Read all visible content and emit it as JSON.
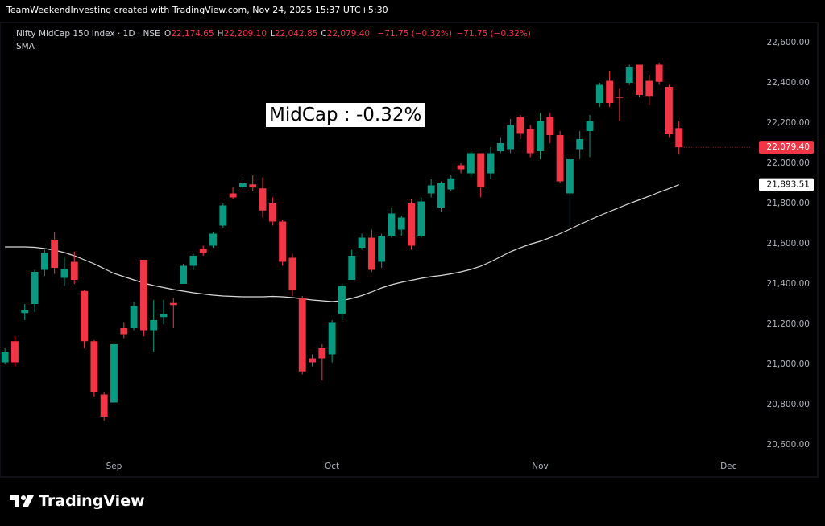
{
  "header": "TeamWeekendInvesting created with TradingView.com, Nov 24, 2025 15:37 UTC+5:30",
  "logo": "TradingView",
  "chart_data": {
    "type": "candlestick",
    "title": "Nifty MidCap 150 Index · 1D · NSE",
    "ohlc_legend": [
      {
        "key": "O",
        "text": "22,174.65"
      },
      {
        "key": "H",
        "text": "22,209.10"
      },
      {
        "key": "L",
        "text": "22,042.85"
      },
      {
        "key": "C",
        "text": "22,079.40"
      }
    ],
    "change_texts": [
      "−71.75 (−0.32%)",
      "−71.75 (−0.32%)"
    ],
    "annotation": "MidCap : -0.32%",
    "up_color": "#089981",
    "down_color": "#f23645",
    "categories": [
      null,
      null,
      null,
      null,
      null,
      null,
      null,
      null,
      null,
      null,
      null,
      "Sep",
      null,
      null,
      null,
      null,
      null,
      null,
      null,
      null,
      null,
      null,
      null,
      null,
      null,
      null,
      null,
      null,
      null,
      null,
      null,
      null,
      null,
      "Oct",
      null,
      null,
      null,
      null,
      null,
      null,
      null,
      null,
      null,
      null,
      null,
      null,
      null,
      null,
      null,
      null,
      null,
      null,
      null,
      null,
      "Nov",
      null,
      null,
      null,
      null,
      null,
      null,
      null,
      null,
      null,
      null,
      null,
      null,
      null,
      null,
      null,
      null,
      null,
      null,
      "Dec",
      null,
      null
    ],
    "open": [
      21010,
      21115,
      21255,
      21300,
      21470,
      21620,
      21430,
      21510,
      21365,
      21115,
      20850,
      20810,
      21180,
      21180,
      21520,
      21170,
      21235,
      21305,
      21400,
      21490,
      21575,
      21590,
      21690,
      21850,
      21880,
      21895,
      21875,
      21800,
      21710,
      21530,
      21330,
      21030,
      21080,
      21050,
      21250,
      21420,
      21580,
      21630,
      21510,
      21640,
      21670,
      21800,
      21640,
      21850,
      21780,
      21870,
      21990,
      21950,
      22050,
      21950,
      22060,
      22070,
      22230,
      22170,
      22060,
      22230,
      22140,
      21850,
      22070,
      22160,
      22300,
      22410,
      22330,
      22400,
      22490,
      22410,
      22490,
      22380,
      22174.65,
      null,
      null,
      null,
      null,
      null,
      null,
      null
    ],
    "high": [
      21080,
      21140,
      21300,
      21470,
      21570,
      21660,
      21530,
      21560,
      21370,
      21120,
      20860,
      21110,
      21210,
      21310,
      21520,
      21320,
      21320,
      21330,
      21500,
      21550,
      21590,
      21660,
      21800,
      21880,
      21920,
      21940,
      21930,
      21830,
      21720,
      21550,
      21340,
      21050,
      21100,
      21220,
      21400,
      21570,
      21650,
      21670,
      21650,
      21780,
      21740,
      21820,
      21830,
      21920,
      21910,
      21940,
      22000,
      22060,
      22050,
      22080,
      22130,
      22220,
      22240,
      22190,
      22250,
      22250,
      22160,
      22030,
      22160,
      22240,
      22400,
      22460,
      22370,
      22490,
      22490,
      22440,
      22500,
      22390,
      22209.1,
      null,
      null,
      null,
      null,
      null,
      null,
      null
    ],
    "low": [
      21000,
      20990,
      21220,
      21260,
      21440,
      21450,
      21390,
      21400,
      21080,
      20840,
      20720,
      20800,
      21130,
      21170,
      21140,
      21060,
      21200,
      21180,
      21400,
      21470,
      21540,
      21580,
      21680,
      21820,
      21860,
      21860,
      21730,
      21690,
      21490,
      21340,
      20950,
      20990,
      20920,
      21010,
      21220,
      21420,
      21570,
      21460,
      21480,
      21630,
      21640,
      21570,
      21630,
      21830,
      21760,
      21860,
      21950,
      21930,
      21830,
      21920,
      22050,
      22050,
      22120,
      22030,
      22020,
      22100,
      21900,
      21680,
      22020,
      22030,
      22280,
      22280,
      22210,
      22390,
      22330,
      22290,
      22390,
      22130,
      22042.85,
      null,
      null,
      null,
      null,
      null,
      null,
      null
    ],
    "close": [
      21060,
      21010,
      21270,
      21460,
      21555,
      21480,
      21475,
      21420,
      21115,
      20860,
      20740,
      21100,
      21150,
      21290,
      21170,
      21220,
      21250,
      21295,
      21490,
      21540,
      21555,
      21650,
      21790,
      21830,
      21900,
      21880,
      21765,
      21710,
      21510,
      21370,
      20965,
      21010,
      21030,
      21210,
      21390,
      21540,
      21630,
      21470,
      21640,
      21750,
      21730,
      21590,
      21810,
      21890,
      21900,
      21925,
      21970,
      22050,
      21880,
      22050,
      22100,
      22190,
      22150,
      22050,
      22210,
      22140,
      21910,
      22020,
      22120,
      22210,
      22390,
      22300,
      22325,
      22480,
      22340,
      22335,
      22405,
      22145,
      22079.4,
      null,
      null,
      null,
      null,
      null,
      null,
      null
    ],
    "close_value_label": "22,079.40",
    "sma": {
      "name": "SMA",
      "color": "#d9d9d9",
      "value_label": "21,893.51",
      "values": [
        21584,
        21584,
        21584,
        21582,
        21576,
        21568,
        21556,
        21540,
        21520,
        21500,
        21476,
        21452,
        21436,
        21420,
        21404,
        21392,
        21382,
        21372,
        21364,
        21356,
        21350,
        21344,
        21340,
        21338,
        21336,
        21336,
        21336,
        21338,
        21336,
        21332,
        21326,
        21320,
        21316,
        21312,
        21316,
        21328,
        21342,
        21360,
        21380,
        21396,
        21408,
        21418,
        21428,
        21436,
        21442,
        21450,
        21460,
        21472,
        21488,
        21510,
        21535,
        21560,
        21580,
        21598,
        21612,
        21630,
        21650,
        21672,
        21696,
        21718,
        21740,
        21760,
        21780,
        21800,
        21818,
        21836,
        21856,
        21874,
        21893.51,
        null,
        null,
        null,
        null,
        null,
        null,
        null
      ]
    },
    "ylim": [
      20540,
      22700
    ],
    "yticks": [
      {
        "value": 20600,
        "label": "20,600.00"
      },
      {
        "value": 20800,
        "label": "20,800.00"
      },
      {
        "value": 21000,
        "label": "21,000.00"
      },
      {
        "value": 21200,
        "label": "21,200.00"
      },
      {
        "value": 21400,
        "label": "21,400.00"
      },
      {
        "value": 21600,
        "label": "21,600.00"
      },
      {
        "value": 21800,
        "label": "21,800.00"
      },
      {
        "value": 22000,
        "label": "22,000.00"
      },
      {
        "value": 22200,
        "label": "22,200.00"
      },
      {
        "value": 22400,
        "label": "22,400.00"
      },
      {
        "value": 22600,
        "label": "22,600.00"
      }
    ],
    "grid": false
  }
}
